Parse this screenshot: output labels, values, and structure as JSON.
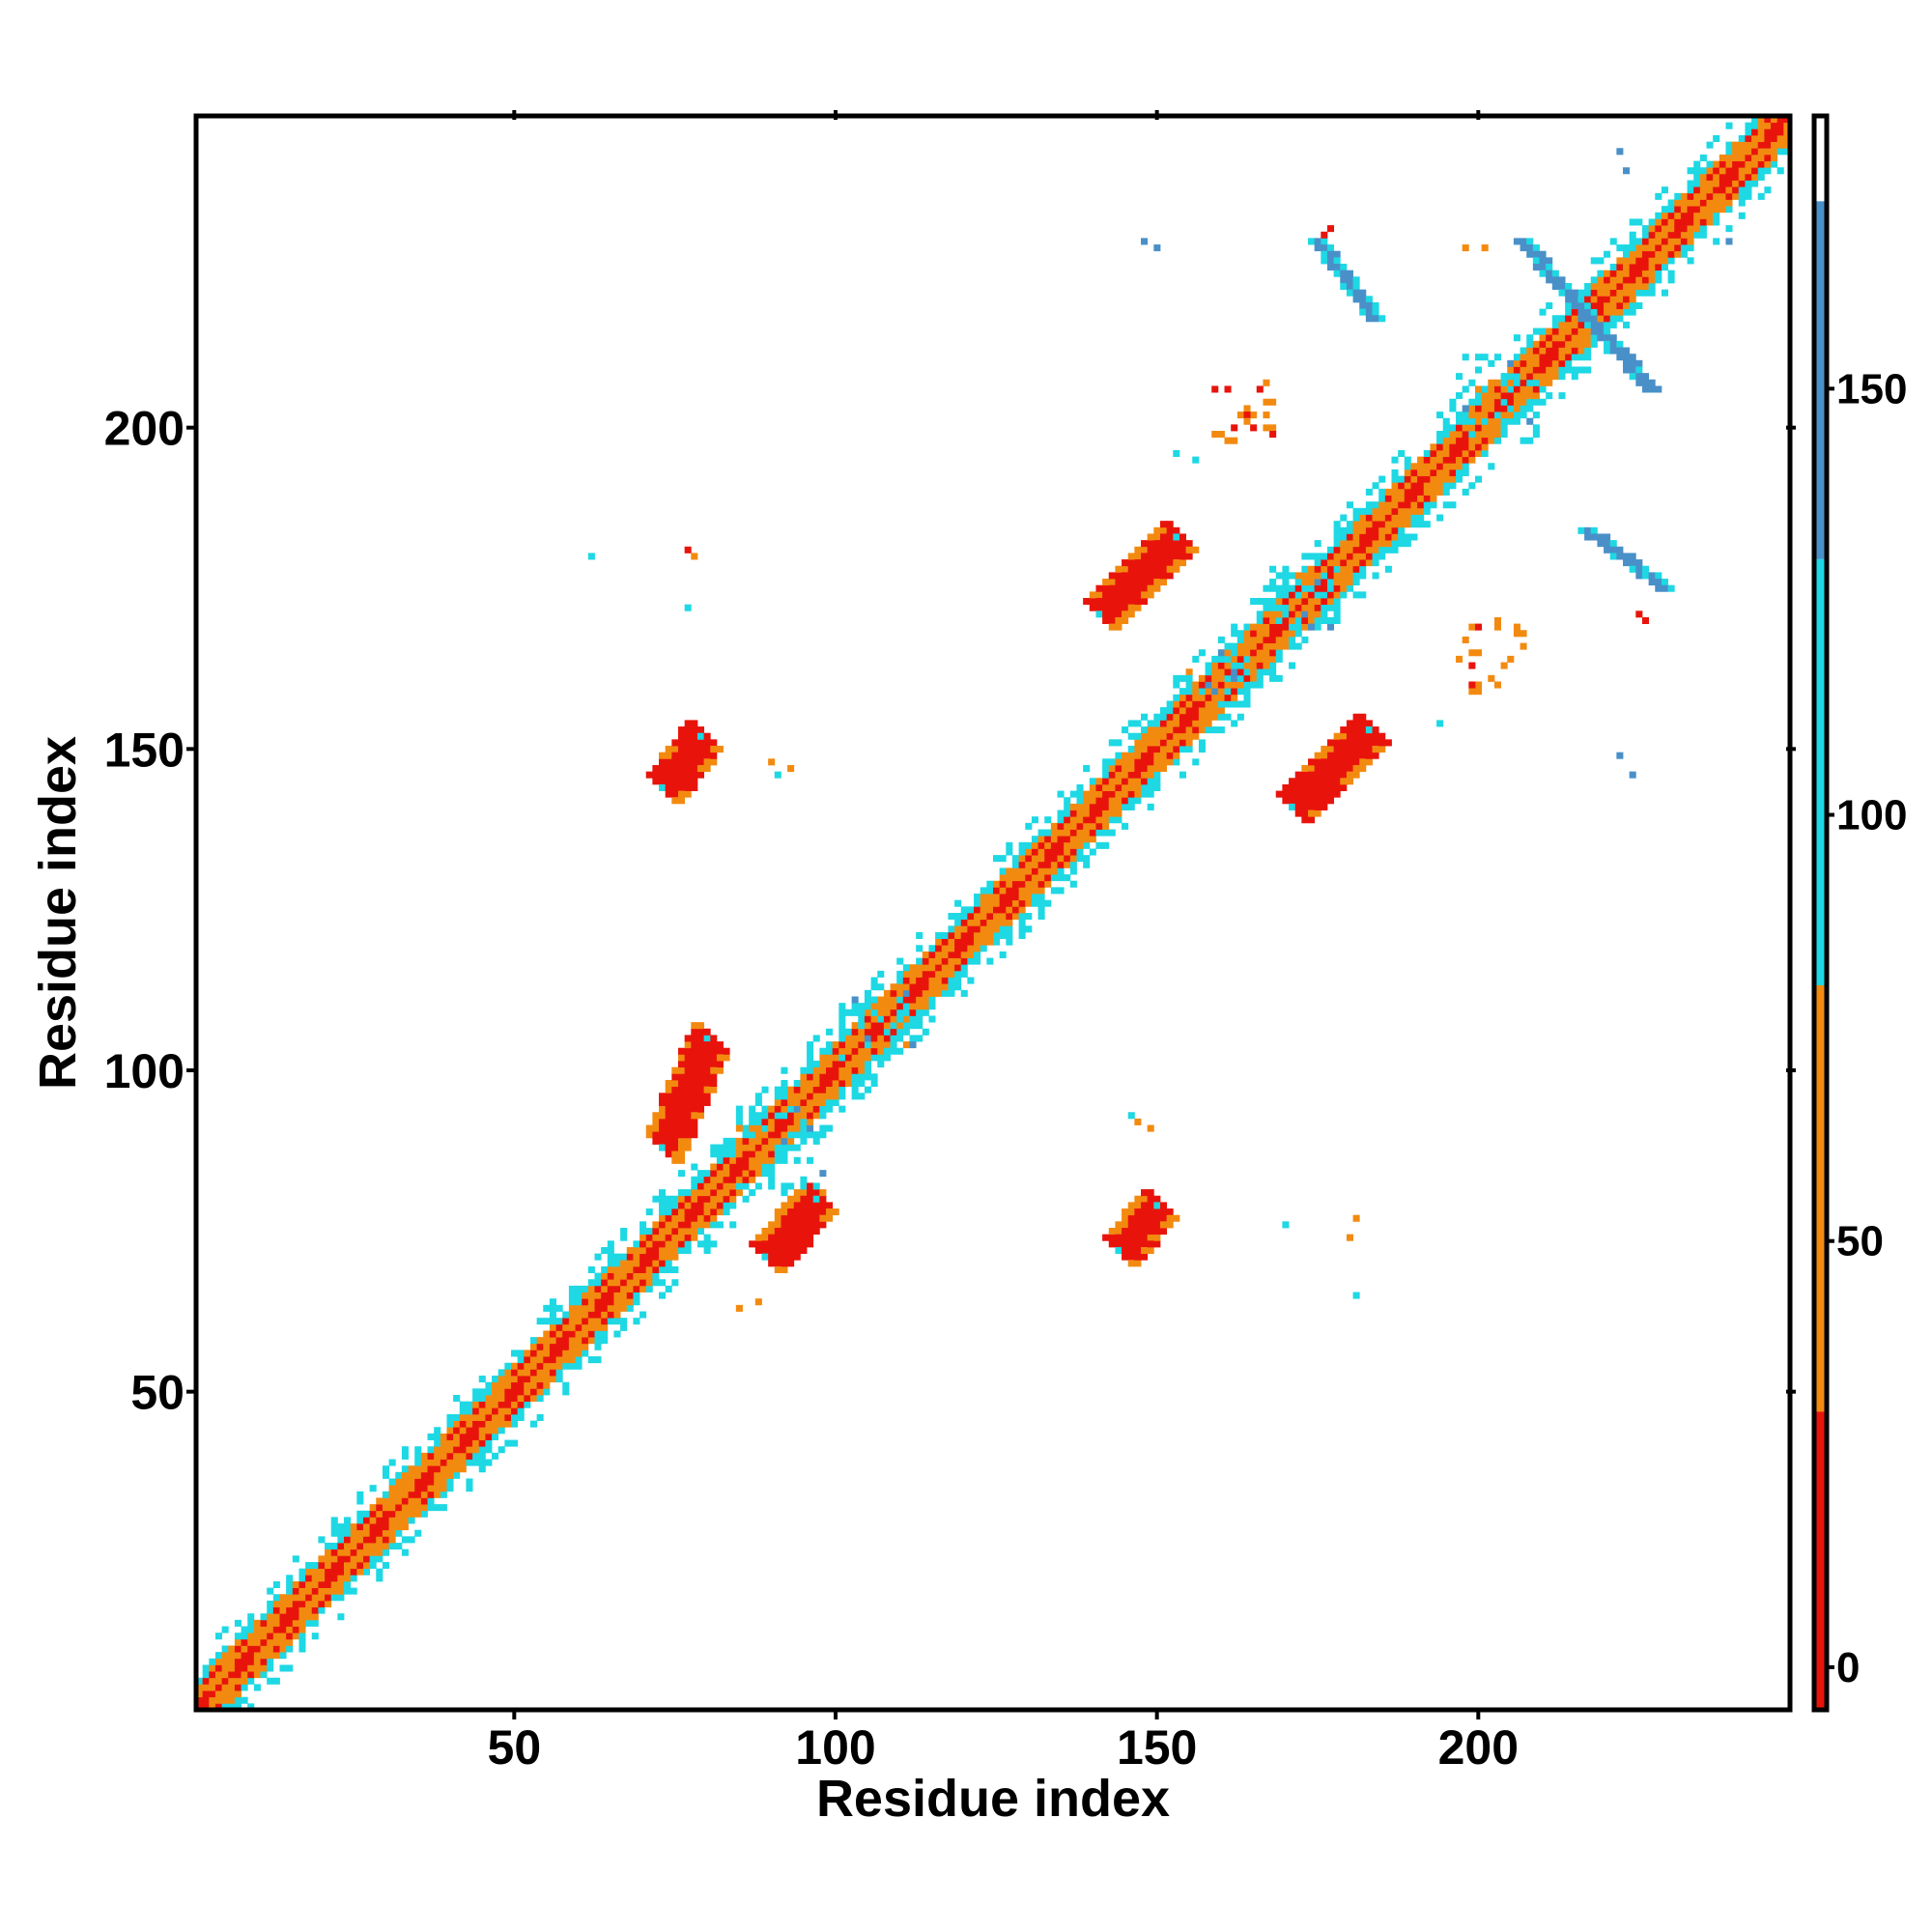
{
  "chart_data": {
    "type": "heatmap",
    "title": "",
    "xlabel": "Residue index",
    "ylabel": "Residue index",
    "xlim": [
      1,
      248
    ],
    "ylim": [
      1,
      248
    ],
    "x_ticks": [
      50,
      100,
      150,
      200
    ],
    "y_ticks": [
      50,
      100,
      150,
      200
    ],
    "grid": false,
    "legend": "none",
    "colorbar": {
      "position": "right",
      "ticks": [
        0,
        50,
        100,
        150
      ],
      "range": [
        -5,
        182
      ],
      "bands": [
        {
          "from": -5,
          "to": 30,
          "color": "#e8140c"
        },
        {
          "from": 30,
          "to": 80,
          "color": "#f38a10"
        },
        {
          "from": 80,
          "to": 130,
          "color": "#1ed8e4"
        },
        {
          "from": 130,
          "to": 172,
          "color": "#4a90c8"
        },
        {
          "from": 172,
          "to": 182,
          "color": "#ffffff"
        }
      ]
    },
    "colors": {
      "helix": "#e8140c",
      "near": "#f38a10",
      "mid": "#1ed8e4",
      "far": "#4a90c8"
    },
    "diagonal": {
      "from": 1,
      "to": 248,
      "band_width": 8
    },
    "features": [
      {
        "x": [
          73,
          79
        ],
        "y": [
          144,
          152
        ],
        "kind": "parallel",
        "value": 10
      },
      {
        "x": [
          73,
          80
        ],
        "y": [
          88,
          105
        ],
        "kind": "parallel",
        "value": 10
      },
      {
        "x": [
          89,
          97
        ],
        "y": [
          71,
          80
        ],
        "kind": "parallel",
        "value": 10
      },
      {
        "x": [
          144,
          150
        ],
        "y": [
          72,
          79
        ],
        "kind": "parallel",
        "value": 10
      },
      {
        "x": [
          141,
          153
        ],
        "y": [
          171,
          183
        ],
        "kind": "parallel",
        "value": 10
      },
      {
        "x": [
          171,
          183
        ],
        "y": [
          141,
          153
        ],
        "kind": "parallel",
        "value": 10
      },
      {
        "x": [
          175,
          184
        ],
        "y": [
          217,
          229
        ],
        "kind": "anti",
        "value": 160
      },
      {
        "x": [
          207,
          227
        ],
        "y": [
          206,
          229
        ],
        "kind": "anti",
        "value": 160
      },
      {
        "x": [
          217,
          229
        ],
        "y": [
          175,
          184
        ],
        "kind": "anti",
        "value": 160
      },
      {
        "x": [
          158,
          169
        ],
        "y": [
          198,
          207
        ],
        "kind": "sparse",
        "value": 40
      },
      {
        "x": [
          196,
          207
        ],
        "y": [
          159,
          170
        ],
        "kind": "sparse",
        "value": 40
      },
      {
        "x": [
          84,
          98
        ],
        "y": [
          80,
          94
        ],
        "kind": "cluster",
        "value": 100
      },
      {
        "x": [
          100,
          112
        ],
        "y": [
          102,
          112
        ],
        "kind": "cluster",
        "value": 100
      },
      {
        "x": [
          155,
          165
        ],
        "y": [
          157,
          165
        ],
        "kind": "cluster",
        "value": 100
      },
      {
        "x": [
          168,
          178
        ],
        "y": [
          168,
          179
        ],
        "kind": "cluster",
        "value": 100
      },
      {
        "x": [
          196,
          210
        ],
        "y": [
          198,
          211
        ],
        "kind": "cluster",
        "value": 100
      }
    ]
  }
}
